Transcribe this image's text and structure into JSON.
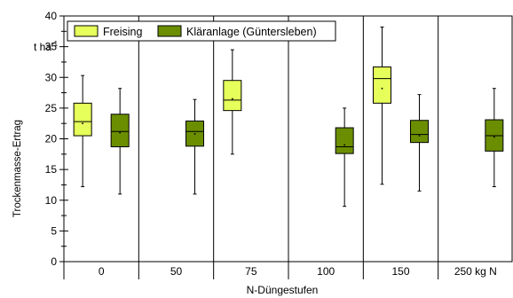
{
  "chart_data": {
    "type": "box",
    "title": "",
    "xlabel": "N-Düngestufen",
    "ylabel": "Trockenmasse-Ertrag",
    "unit_label": {
      "base": "t ha",
      "sup": "-1"
    },
    "ylim": [
      0,
      40
    ],
    "yticks": [
      0,
      5,
      10,
      15,
      20,
      25,
      30,
      35,
      40
    ],
    "grid": false,
    "legend_position": "top-left",
    "categories": [
      "0",
      "50",
      "75",
      "100",
      "150",
      "250 kg N"
    ],
    "colors": {
      "Freising": "#e6ff5a",
      "Kläranlage (Güntersleben)": "#6b8e00"
    },
    "series": [
      {
        "name": "Freising",
        "boxes": [
          {
            "category": "0",
            "min": 12.2,
            "q1": 20.5,
            "median": 22.8,
            "q3": 25.8,
            "max": 30.3,
            "mean": 22.5
          },
          {
            "category": "75",
            "min": 17.5,
            "q1": 24.6,
            "median": 26.3,
            "q3": 29.5,
            "max": 34.5,
            "mean": 26.5
          },
          {
            "category": "150",
            "min": 12.6,
            "q1": 25.8,
            "median": 29.8,
            "q3": 31.7,
            "max": 38.2,
            "mean": 28.2
          }
        ]
      },
      {
        "name": "Kläranlage (Güntersleben)",
        "boxes": [
          {
            "category": "0",
            "min": 11.0,
            "q1": 18.7,
            "median": 21.2,
            "q3": 24.0,
            "max": 28.2,
            "mean": 21.0
          },
          {
            "category": "50",
            "min": 11.0,
            "q1": 18.8,
            "median": 21.2,
            "q3": 22.9,
            "max": 26.4,
            "mean": 20.8
          },
          {
            "category": "100",
            "min": 9.0,
            "q1": 17.6,
            "median": 18.7,
            "q3": 21.8,
            "max": 25.0,
            "mean": 19.0
          },
          {
            "category": "150",
            "min": 11.5,
            "q1": 19.4,
            "median": 20.7,
            "q3": 23.0,
            "max": 27.2,
            "mean": 20.5
          },
          {
            "category": "250 kg N",
            "min": 12.2,
            "q1": 18.0,
            "median": 20.5,
            "q3": 23.1,
            "max": 28.2,
            "mean": 20.3
          }
        ]
      }
    ]
  }
}
